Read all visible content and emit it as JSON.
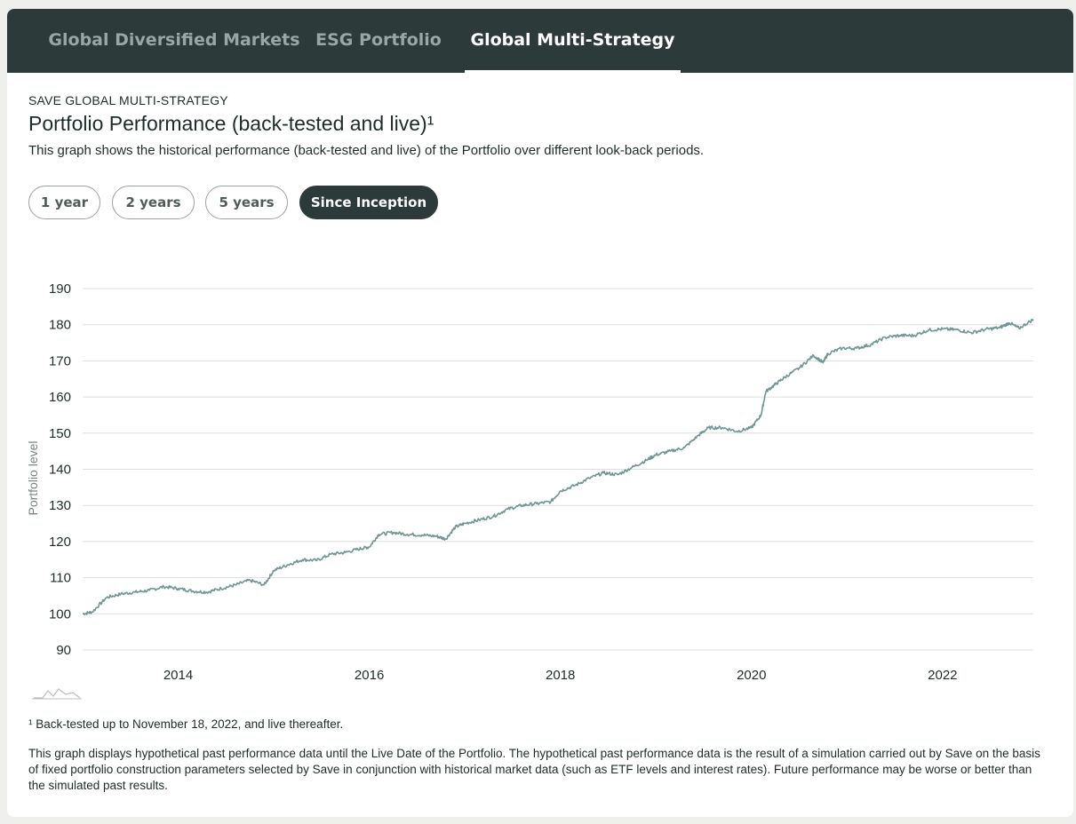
{
  "tabs": [
    {
      "label": "Global Diversified Markets",
      "active": false
    },
    {
      "label": "ESG Portfolio",
      "active": false
    },
    {
      "label": "Global Multi-Strategy",
      "active": true
    }
  ],
  "header": {
    "eyebrow": "SAVE GLOBAL MULTI-STRATEGY",
    "title": "Portfolio Performance (back-tested and live)¹",
    "subtitle": "This graph shows the historical performance (back-tested and live) of the Portfolio over different look-back periods."
  },
  "periods": [
    {
      "label": "1 year",
      "active": false
    },
    {
      "label": "2 years",
      "active": false
    },
    {
      "label": "5 years",
      "active": false
    },
    {
      "label": "Since Inception",
      "active": true
    }
  ],
  "chart_data": {
    "type": "line",
    "title": "",
    "xlabel": "",
    "ylabel": "Portfolio level",
    "ylim": [
      90,
      190
    ],
    "xlim": [
      2013.0,
      2022.95
    ],
    "yticks": [
      90,
      100,
      110,
      120,
      130,
      140,
      150,
      160,
      170,
      180,
      190
    ],
    "xticks": [
      {
        "value": 2014,
        "label": "2014"
      },
      {
        "value": 2016,
        "label": "2016"
      },
      {
        "value": 2018,
        "label": "2018"
      },
      {
        "value": 2020,
        "label": "2020"
      },
      {
        "value": 2022,
        "label": "2022"
      }
    ],
    "grid": true,
    "color": "#6e9793",
    "series": [
      {
        "x": [
          2013.0,
          2013.1,
          2013.25,
          2013.4,
          2013.55,
          2013.7,
          2013.85,
          2014.0,
          2014.15,
          2014.3,
          2014.45,
          2014.6,
          2014.75,
          2014.9,
          2015.0,
          2015.15,
          2015.3,
          2015.45,
          2015.6,
          2015.75,
          2015.9,
          2016.0,
          2016.1,
          2016.25,
          2016.4,
          2016.55,
          2016.7,
          2016.8,
          2016.9,
          2017.0,
          2017.15,
          2017.3,
          2017.45,
          2017.6,
          2017.75,
          2017.9,
          2018.0,
          2018.15,
          2018.3,
          2018.45,
          2018.6,
          2018.75,
          2018.9,
          2019.0,
          2019.15,
          2019.3,
          2019.45,
          2019.55,
          2019.7,
          2019.85,
          2020.0,
          2020.1,
          2020.15,
          2020.25,
          2020.35,
          2020.5,
          2020.65,
          2020.75,
          2020.8,
          2020.95,
          2021.1,
          2021.25,
          2021.4,
          2021.55,
          2021.7,
          2021.85,
          2022.0,
          2022.15,
          2022.3,
          2022.45,
          2022.6,
          2022.7,
          2022.8,
          2022.95
        ],
        "values": [
          100,
          100.5,
          104.5,
          105.5,
          106,
          106.5,
          107.5,
          107,
          106.3,
          106,
          107,
          108,
          109.3,
          108,
          112,
          113.6,
          115,
          114.8,
          116.5,
          117,
          118,
          118.5,
          122,
          122.5,
          122,
          121.8,
          121.5,
          120.7,
          124,
          125,
          126,
          127,
          129,
          130,
          130.5,
          131,
          134,
          135.5,
          137.5,
          139,
          138.5,
          140.5,
          142.5,
          144,
          145,
          146,
          149.5,
          151.5,
          151.5,
          150.5,
          151.5,
          155,
          161.5,
          163.5,
          165.5,
          168,
          171.5,
          169.5,
          172,
          173.5,
          173.5,
          174.5,
          176.5,
          177,
          177,
          178.5,
          178.8,
          178.6,
          177.8,
          178.7,
          179.2,
          180.5,
          179,
          181.5
        ]
      }
    ]
  },
  "footnotes": {
    "footnote1": "¹ Back-tested up to November 18, 2022, and live thereafter.",
    "disclaimer": "This graph displays hypothetical past performance data until the Live Date of the Portfolio. The hypothetical past performance data is the result of a simulation carried out by Save on the basis of fixed portfolio construction parameters selected by Save in conjunction with historical market data (such as ETF levels and interest rates). Future performance may be worse or better than the simulated past results."
  }
}
